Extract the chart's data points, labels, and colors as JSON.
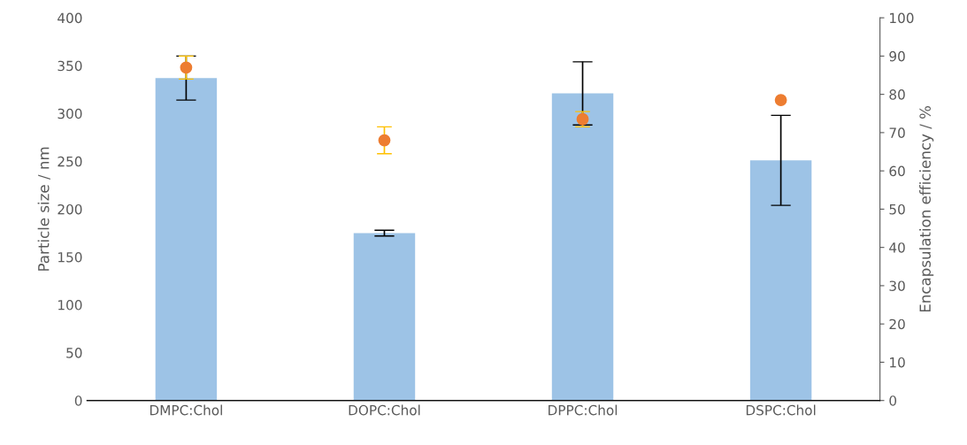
{
  "chart_data": {
    "type": "bar",
    "categories": [
      "DMPC:Chol",
      "DOPC:Chol",
      "DPPC:Chol",
      "DSPC:Chol"
    ],
    "ylabel": "Particle size / nm",
    "y2label": "Encapsulation efficiency / %",
    "ylim": [
      0,
      400
    ],
    "yticks": [
      0,
      50,
      100,
      150,
      200,
      250,
      300,
      350,
      400
    ],
    "y2lim": [
      0,
      100
    ],
    "y2ticks": [
      0,
      10,
      20,
      30,
      40,
      50,
      60,
      70,
      80,
      90,
      100
    ],
    "grid": false,
    "legend": false,
    "series": [
      {
        "color": "#9dc3e6",
        "values": [
          337,
          175,
          321,
          251
        ],
        "errors": [
          23,
          3,
          33,
          47
        ]
      },
      {
        "type": "scatter",
        "axis": "y2",
        "color": "#ed7d31",
        "marker": "circle",
        "values": [
          87,
          68,
          73.5,
          78.5
        ],
        "errors": [
          3,
          3.5,
          2,
          null
        ]
      }
    ]
  }
}
